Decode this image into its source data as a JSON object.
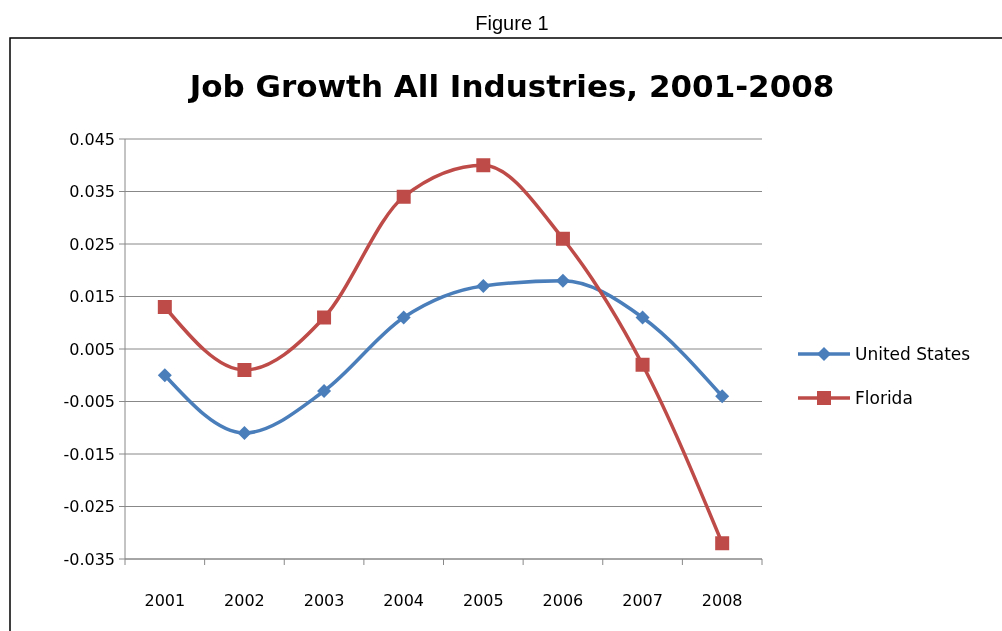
{
  "chart_data": {
    "type": "line",
    "title": "Job Growth All Industries, 2001-2008",
    "annotations": [
      "Figure 1"
    ],
    "categories": [
      "2001",
      "2002",
      "2003",
      "2004",
      "2005",
      "2006",
      "2007",
      "2008"
    ],
    "series": [
      {
        "name": "United States",
        "color": "#4a7ebb",
        "marker": "diamond",
        "values": [
          0.0,
          -0.011,
          -0.003,
          0.011,
          0.017,
          0.018,
          0.011,
          -0.004
        ]
      },
      {
        "name": "Florida",
        "color": "#be4b48",
        "marker": "square",
        "values": [
          0.013,
          0.001,
          0.011,
          0.034,
          0.04,
          0.026,
          0.002,
          -0.032
        ]
      }
    ],
    "ylim": [
      -0.035,
      0.045
    ],
    "yticks": [
      -0.035,
      -0.025,
      -0.015,
      -0.005,
      0.005,
      0.015,
      0.025,
      0.035,
      0.045
    ],
    "grid": "y",
    "legend": "right"
  }
}
